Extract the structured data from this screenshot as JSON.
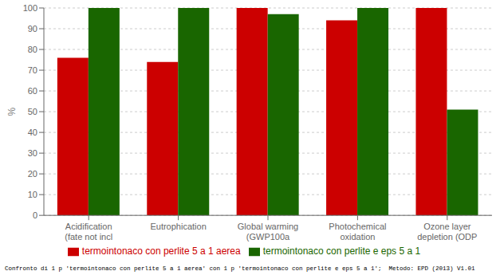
{
  "chart_data": {
    "type": "bar",
    "categories": [
      "Acidification\n(fate not incl",
      "Eutrophication",
      "Global warming\n(GWP100a",
      "Photochemical\noxidation",
      "Ozone layer\ndepletion (ODP"
    ],
    "series": [
      {
        "name": "termointonaco con perlite 5 a 1 aerea",
        "color": "#cc0000",
        "values": [
          76,
          74,
          100,
          94,
          100
        ]
      },
      {
        "name": "termointonaco con perlite e eps 5 a 1",
        "color": "#196600",
        "values": [
          100,
          100,
          97,
          100,
          51
        ]
      }
    ],
    "ylabel": "%",
    "ylim": [
      0,
      100
    ],
    "yticks": [
      0,
      10,
      20,
      30,
      40,
      50,
      60,
      70,
      80,
      90,
      100
    ],
    "grid": true,
    "legend": "bottom",
    "annotations": [
      "Confronto di 1 p 'termointonaco con perlite 5 a 1 aerea' con 1 p 'termointonaco con perlite e eps 5 a 1';  Metodo: EPD (2013) V1.01"
    ]
  }
}
